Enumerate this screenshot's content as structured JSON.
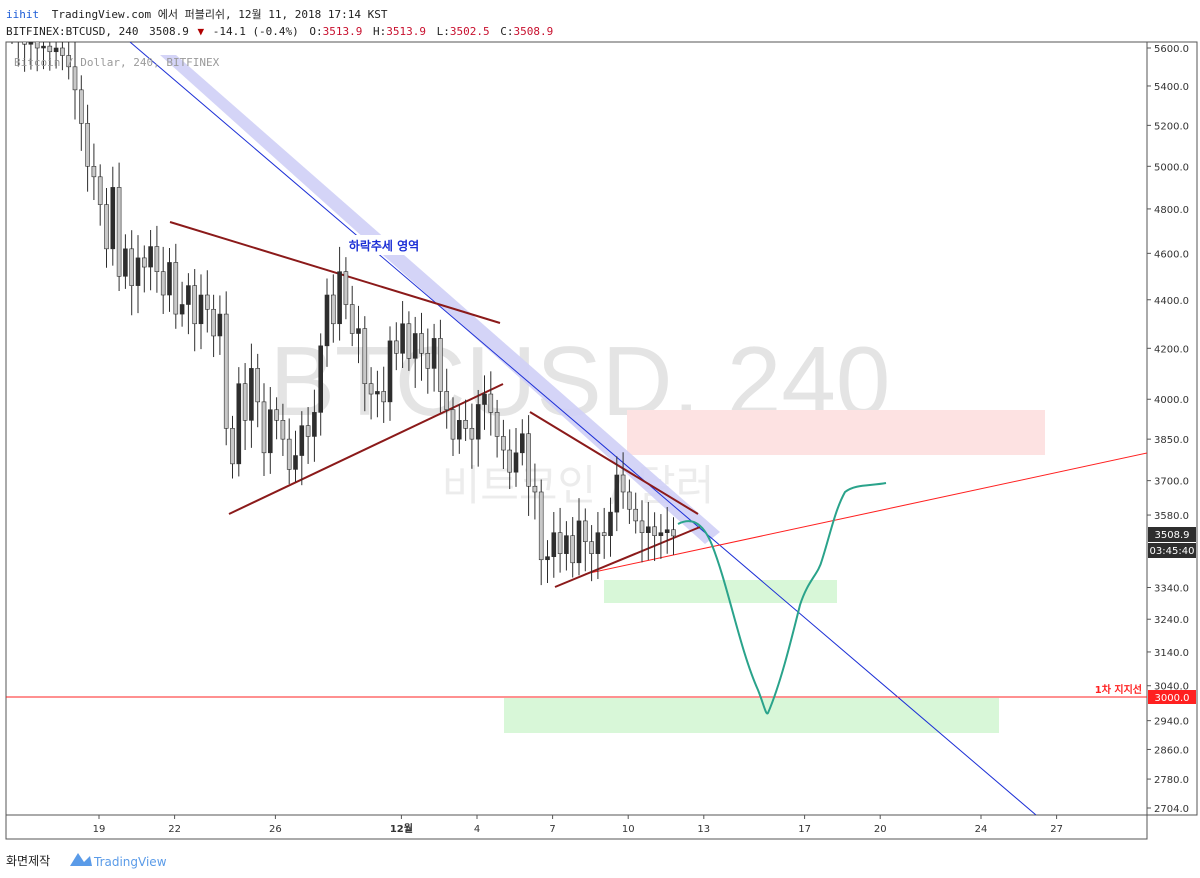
{
  "header": {
    "publish_line_brand": "iihit",
    "publish_line_rest": "TradingView.com 에서 퍼블리쉬, 12월 11, 2018 17:14 KST",
    "symbol": "BITFINEX:BTCUSD, 240",
    "last": "3508.9",
    "change": "-14.1 (-0.4%)",
    "o_label": "O:",
    "o_value": "3513.9",
    "h_label": "H:",
    "h_value": "3513.9",
    "l_label": "L:",
    "l_value": "3502.5",
    "c_label": "C:",
    "c_value": "3508.9"
  },
  "legend_text": "Bitcoin / Dollar, 240, BITFINEX",
  "watermark": {
    "line1": "BTCUSD, 240",
    "line2": "비트코인 / 달러"
  },
  "footer": {
    "left": "화면제작",
    "brand": "TradingView"
  },
  "colors": {
    "up_candle": "#2e2e2e",
    "down_candle": "#c8c8c8",
    "trendline_blue": "#1c2fd6",
    "trendline_band": "#ccccf5",
    "triangle_line": "#8b1a1a",
    "support_line": "#ff2020",
    "projection": "#2aa38b",
    "green_zone": "#d8f7d8",
    "red_zone": "#fde2e2"
  },
  "chart_data": {
    "type": "candlestick",
    "interval": "240",
    "ylim": [
      2660,
      5660
    ],
    "y_scale": "log",
    "y_ticks": [
      5600.0,
      5400.0,
      5200.0,
      5000.0,
      4800.0,
      4600.0,
      4400.0,
      4200.0,
      4000.0,
      3850.0,
      3700.0,
      3580.0,
      3340.0,
      3240.0,
      3140.0,
      3040.0,
      2940.0,
      2860.0,
      2780.0,
      2704.0
    ],
    "x_ticks": [
      {
        "label": "19",
        "x": 0
      },
      {
        "label": "22",
        "x": 3
      },
      {
        "label": "26",
        "x": 7
      },
      {
        "label": "12월",
        "x": 12,
        "bold": true
      },
      {
        "label": "4",
        "x": 15
      },
      {
        "label": "7",
        "x": 18
      },
      {
        "label": "10",
        "x": 21
      },
      {
        "label": "13",
        "x": 24
      },
      {
        "label": "17",
        "x": 28
      },
      {
        "label": "20",
        "x": 31
      },
      {
        "label": "24",
        "x": 35
      },
      {
        "label": "27",
        "x": 38
      }
    ],
    "last_price": {
      "value": 3508.9,
      "label": "3508.9",
      "countdown": "03:45:40"
    },
    "support": {
      "value": 3000.0,
      "label": "3000.0",
      "name": "1차 지지선"
    },
    "annotation": {
      "text": "하락추세 영역",
      "x": 10.5,
      "y": 4680
    },
    "candles_close": [
      5690,
      5660,
      5620,
      5640,
      5600,
      5610,
      5580,
      5600,
      5560,
      5500,
      5380,
      5210,
      5000,
      4950,
      4820,
      4620,
      4900,
      4500,
      4620,
      4460,
      4580,
      4540,
      4630,
      4520,
      4420,
      4560,
      4340,
      4380,
      4460,
      4300,
      4420,
      4360,
      4250,
      4340,
      3890,
      3760,
      4060,
      3920,
      4120,
      3990,
      3800,
      3960,
      3920,
      3850,
      3740,
      3790,
      3900,
      3860,
      3950,
      4210,
      4420,
      4300,
      4520,
      4380,
      4260,
      4280,
      4060,
      4020,
      4030,
      3990,
      4230,
      4180,
      4300,
      4160,
      4260,
      4180,
      4120,
      4240,
      4030,
      3960,
      3850,
      3920,
      3890,
      3850,
      3980,
      4020,
      3950,
      3860,
      3810,
      3730,
      3800,
      3870,
      3680,
      3660,
      3430,
      3440,
      3520,
      3450,
      3510,
      3420,
      3560,
      3490,
      3450,
      3520,
      3510,
      3590,
      3720,
      3660,
      3600,
      3560,
      3520,
      3540,
      3510,
      3520,
      3530,
      3509
    ]
  }
}
